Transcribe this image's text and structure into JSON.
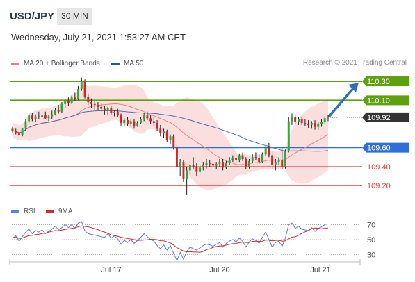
{
  "header": {
    "symbol": "USD/JPY",
    "timeframe": "30 MIN",
    "timestamp": "Wednesday, July 21, 2021 1:53:27 AM CET"
  },
  "legend": {
    "ma20_label": "MA 20 + Bollinger Bands",
    "ma50_label": "MA 50",
    "credit": "Research © 2021 Trading Central",
    "rsi_label": "RSI",
    "rsi_ma_label": "9MA"
  },
  "colors": {
    "up": "#2fa43a",
    "down": "#d12626",
    "wick": "#1f1f1f",
    "band_fill": "#fbdada",
    "ma20": "#f08080",
    "ma50": "#4f6fae",
    "green_level": "#5da10f",
    "blue_level": "#2f6fd6",
    "red_level": "#e34040",
    "current": "#333333",
    "rsi": "#5f7fd8",
    "rsi_ma": "#d62828",
    "arrow": "#2f6fb8"
  },
  "chart_data": [
    {
      "type": "candlestick",
      "title": "USD/JPY 30 MIN",
      "ylim": [
        109.07,
        110.41
      ],
      "x_ticks": [
        "Jul 17",
        "Jul 20",
        "Jul 21"
      ],
      "candles": [
        [
          109.8,
          109.82,
          109.76,
          109.78
        ],
        [
          109.78,
          109.8,
          109.74,
          109.76
        ],
        [
          109.76,
          109.79,
          109.7,
          109.73
        ],
        [
          109.73,
          109.81,
          109.72,
          109.8
        ],
        [
          109.8,
          109.9,
          109.78,
          109.88
        ],
        [
          109.88,
          109.96,
          109.86,
          109.94
        ],
        [
          109.94,
          109.97,
          109.88,
          109.9
        ],
        [
          109.9,
          109.95,
          109.87,
          109.93
        ],
        [
          109.93,
          109.98,
          109.9,
          109.92
        ],
        [
          109.92,
          109.96,
          109.89,
          109.94
        ],
        [
          109.94,
          109.98,
          109.9,
          109.91
        ],
        [
          109.91,
          109.95,
          109.88,
          109.93
        ],
        [
          109.93,
          109.99,
          109.9,
          109.95
        ],
        [
          109.95,
          110.02,
          109.94,
          110.0
        ],
        [
          110.0,
          110.05,
          109.96,
          109.98
        ],
        [
          109.98,
          110.08,
          109.97,
          110.06
        ],
        [
          110.06,
          110.12,
          110.02,
          110.1
        ],
        [
          110.1,
          110.13,
          110.04,
          110.07
        ],
        [
          110.07,
          110.15,
          110.06,
          110.13
        ],
        [
          110.13,
          110.18,
          110.09,
          110.11
        ],
        [
          110.11,
          110.25,
          110.1,
          110.22
        ],
        [
          110.22,
          110.34,
          110.2,
          110.3
        ],
        [
          110.3,
          110.32,
          110.12,
          110.14
        ],
        [
          110.14,
          110.17,
          110.05,
          110.08
        ],
        [
          110.08,
          110.12,
          110.02,
          110.06
        ],
        [
          110.06,
          110.09,
          110.0,
          110.05
        ],
        [
          110.05,
          110.08,
          109.99,
          110.03
        ],
        [
          110.03,
          110.07,
          109.98,
          110.01
        ],
        [
          110.01,
          110.04,
          109.95,
          109.99
        ],
        [
          109.99,
          110.03,
          109.94,
          110.02
        ],
        [
          110.02,
          110.04,
          109.95,
          109.97
        ],
        [
          109.97,
          110.0,
          109.93,
          109.98
        ],
        [
          109.98,
          110.01,
          109.92,
          109.94
        ],
        [
          109.94,
          109.96,
          109.83,
          109.86
        ],
        [
          109.86,
          109.91,
          109.82,
          109.89
        ],
        [
          109.89,
          109.92,
          109.83,
          109.85
        ],
        [
          109.85,
          109.9,
          109.82,
          109.88
        ],
        [
          109.88,
          109.9,
          109.8,
          109.83
        ],
        [
          109.83,
          109.88,
          109.82,
          109.86
        ],
        [
          109.86,
          109.92,
          109.85,
          109.9
        ],
        [
          109.9,
          109.97,
          109.88,
          109.94
        ],
        [
          109.94,
          109.98,
          109.89,
          109.91
        ],
        [
          109.91,
          109.95,
          109.85,
          109.88
        ],
        [
          109.88,
          109.92,
          109.83,
          109.86
        ],
        [
          109.86,
          109.89,
          109.78,
          109.8
        ],
        [
          109.8,
          109.84,
          109.72,
          109.75
        ],
        [
          109.75,
          109.8,
          109.7,
          109.77
        ],
        [
          109.77,
          109.79,
          109.66,
          109.68
        ],
        [
          109.68,
          109.74,
          109.64,
          109.72
        ],
        [
          109.72,
          109.74,
          109.58,
          109.6
        ],
        [
          109.6,
          109.63,
          109.35,
          109.4
        ],
        [
          109.4,
          109.48,
          109.3,
          109.45
        ],
        [
          109.45,
          109.47,
          109.24,
          109.27
        ],
        [
          109.27,
          109.4,
          109.1,
          109.36
        ],
        [
          109.36,
          109.45,
          109.32,
          109.42
        ],
        [
          109.42,
          109.5,
          109.38,
          109.4
        ],
        [
          109.4,
          109.44,
          109.3,
          109.35
        ],
        [
          109.35,
          109.42,
          109.32,
          109.39
        ],
        [
          109.39,
          109.45,
          109.36,
          109.42
        ],
        [
          109.42,
          109.48,
          109.38,
          109.44
        ],
        [
          109.44,
          109.47,
          109.4,
          109.43
        ],
        [
          109.43,
          109.46,
          109.38,
          109.41
        ],
        [
          109.41,
          109.45,
          109.37,
          109.43
        ],
        [
          109.43,
          109.48,
          109.4,
          109.45
        ],
        [
          109.45,
          109.48,
          109.36,
          109.39
        ],
        [
          109.39,
          109.46,
          109.37,
          109.44
        ],
        [
          109.44,
          109.5,
          109.42,
          109.47
        ],
        [
          109.47,
          109.52,
          109.45,
          109.49
        ],
        [
          109.49,
          109.53,
          109.44,
          109.47
        ],
        [
          109.47,
          109.54,
          109.45,
          109.52
        ],
        [
          109.52,
          109.55,
          109.46,
          109.48
        ],
        [
          109.48,
          109.5,
          109.37,
          109.4
        ],
        [
          109.4,
          109.48,
          109.38,
          109.46
        ],
        [
          109.46,
          109.53,
          109.44,
          109.5
        ],
        [
          109.5,
          109.55,
          109.47,
          109.49
        ],
        [
          109.49,
          109.53,
          109.43,
          109.45
        ],
        [
          109.45,
          109.55,
          109.44,
          109.53
        ],
        [
          109.53,
          109.62,
          109.51,
          109.6
        ],
        [
          109.6,
          109.65,
          109.5,
          109.52
        ],
        [
          109.52,
          109.56,
          109.38,
          109.42
        ],
        [
          109.42,
          109.48,
          109.36,
          109.45
        ],
        [
          109.45,
          109.5,
          109.42,
          109.47
        ],
        [
          109.47,
          109.6,
          109.37,
          109.4
        ],
        [
          109.4,
          109.58,
          109.38,
          109.56
        ],
        [
          109.56,
          109.92,
          109.55,
          109.88
        ],
        [
          109.88,
          109.96,
          109.84,
          109.92
        ],
        [
          109.92,
          109.95,
          109.85,
          109.87
        ],
        [
          109.87,
          109.92,
          109.84,
          109.9
        ],
        [
          109.9,
          109.93,
          109.84,
          109.86
        ],
        [
          109.86,
          109.9,
          109.83,
          109.85
        ],
        [
          109.85,
          109.89,
          109.81,
          109.84
        ],
        [
          109.84,
          109.88,
          109.8,
          109.86
        ],
        [
          109.86,
          109.89,
          109.79,
          109.82
        ],
        [
          109.82,
          109.87,
          109.79,
          109.85
        ],
        [
          109.85,
          109.9,
          109.82,
          109.87
        ],
        [
          109.87,
          109.93,
          109.85,
          109.91
        ],
        [
          109.91,
          109.95,
          109.88,
          109.92
        ]
      ],
      "levels": [
        {
          "label": "110.30",
          "price": 110.3,
          "kind": "resistance"
        },
        {
          "label": "110.10",
          "price": 110.1,
          "kind": "resistance"
        },
        {
          "label": "109.92",
          "price": 109.92,
          "kind": "current"
        },
        {
          "label": "109.60",
          "price": 109.6,
          "kind": "pivot"
        },
        {
          "label": "109.40",
          "price": 109.4,
          "kind": "support"
        },
        {
          "label": "109.20",
          "price": 109.2,
          "kind": "support"
        }
      ],
      "arrow": {
        "from_price": 109.92,
        "to_price": 110.3
      }
    },
    {
      "type": "line",
      "title": "RSI",
      "ylim": [
        25,
        75
      ],
      "y_ticks": [
        30,
        50,
        70
      ],
      "series": [
        {
          "name": "RSI",
          "values": [
            52,
            55,
            48,
            54,
            60,
            64,
            58,
            62,
            60,
            63,
            58,
            61,
            64,
            68,
            63,
            66,
            70,
            66,
            70,
            65,
            72,
            74,
            62,
            58,
            57,
            56,
            55,
            54,
            53,
            58,
            52,
            55,
            51,
            44,
            49,
            46,
            50,
            45,
            49,
            53,
            58,
            54,
            50,
            48,
            42,
            38,
            43,
            36,
            42,
            32,
            22,
            33,
            24,
            34,
            40,
            38,
            36,
            39,
            42,
            44,
            43,
            41,
            44,
            46,
            40,
            45,
            48,
            50,
            47,
            52,
            48,
            40,
            47,
            51,
            49,
            45,
            53,
            60,
            50,
            40,
            46,
            48,
            41,
            52,
            70,
            72,
            65,
            68,
            64,
            63,
            62,
            66,
            61,
            65,
            67,
            70,
            71
          ]
        },
        {
          "name": "9MA"
        }
      ]
    }
  ]
}
